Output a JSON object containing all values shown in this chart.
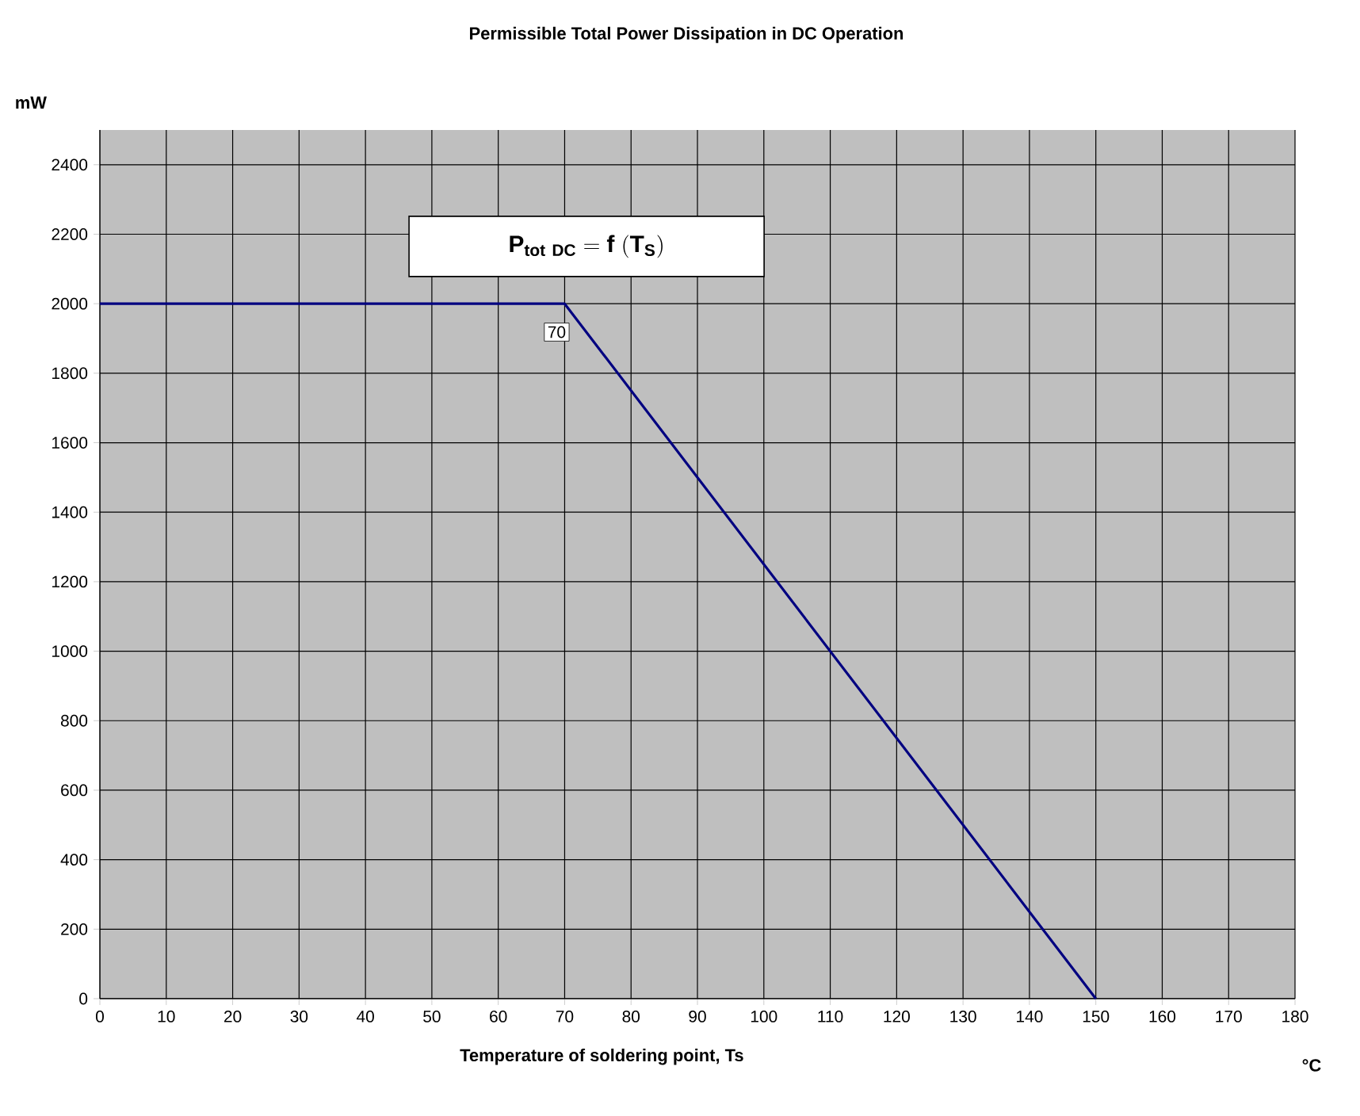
{
  "chart_data": {
    "type": "line",
    "title": "Permissible Total Power Dissipation in DC Operation",
    "xlabel": "Temperature of soldering point, Ts",
    "ylabel": "mW",
    "annotations": [
      "\\mathbf{P_{tot\\ DC} = f\\ (T_{S})}",
      {
        "text": "70",
        "x": 70,
        "y": 2000
      },
      "°C"
    ],
    "x": [
      0,
      70,
      150
    ],
    "series": [
      {
        "color": "#000080",
        "values": [
          2000,
          2000,
          0
        ]
      }
    ],
    "xlim": [
      0,
      180
    ],
    "ylim": [
      0,
      2500
    ],
    "xticks": [
      0,
      10,
      20,
      30,
      40,
      50,
      60,
      70,
      80,
      90,
      100,
      110,
      120,
      130,
      140,
      150,
      160,
      170,
      180
    ],
    "yticks": [
      0,
      200,
      400,
      600,
      800,
      1000,
      1200,
      1400,
      1600,
      1800,
      2000,
      2200,
      2400
    ],
    "grid": true,
    "marker": "none",
    "line_style": "solid"
  }
}
